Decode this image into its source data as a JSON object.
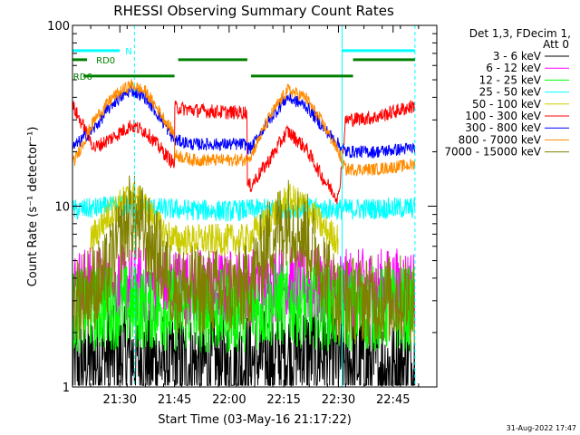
{
  "chart_data": {
    "type": "line",
    "title": "RHESSI Observing Summary Count Rates",
    "ylabel": "Count Rate (s⁻¹ detector⁻¹)",
    "xlabel": "Start Time (03-May-16 21:17:22)",
    "yscale": "log",
    "ylim": [
      1,
      100
    ],
    "xlim_minutes": [
      77,
      177
    ],
    "x_ticks": [
      {
        "m": 90,
        "label": "21:30"
      },
      {
        "m": 105,
        "label": "21:45"
      },
      {
        "m": 120,
        "label": "22:00"
      },
      {
        "m": 135,
        "label": "22:15"
      },
      {
        "m": 150,
        "label": "22:30"
      },
      {
        "m": 165,
        "label": "22:45"
      }
    ],
    "y_ticks": [
      {
        "v": 1,
        "label": "1"
      },
      {
        "v": 10,
        "label": "10"
      },
      {
        "v": 100,
        "label": "100"
      }
    ],
    "legend_header": [
      "Det 1,3, FDecim 1,",
      "Att 0"
    ],
    "legend_position": "right",
    "series": [
      {
        "name": "3 - 6 keV",
        "color": "#000000",
        "y": [
          [
            77,
            1.3
          ],
          [
            88,
            1.5
          ],
          [
            100,
            1.4
          ],
          [
            120,
            1.3
          ],
          [
            140,
            1.6
          ],
          [
            160,
            1.3
          ],
          [
            171,
            1.3
          ]
        ]
      },
      {
        "name": "6 - 12 keV",
        "color": "#ff00ff",
        "y": [
          [
            77,
            3.6
          ],
          [
            90,
            3.7
          ],
          [
            105,
            3.6
          ],
          [
            120,
            3.5
          ],
          [
            135,
            3.7
          ],
          [
            150,
            3.5
          ],
          [
            171,
            3.6
          ]
        ]
      },
      {
        "name": "12 - 25 keV",
        "color": "#00ff00",
        "y": [
          [
            77,
            2.6
          ],
          [
            90,
            2.8
          ],
          [
            105,
            2.7
          ],
          [
            120,
            2.6
          ],
          [
            135,
            2.9
          ],
          [
            150,
            2.7
          ],
          [
            171,
            2.7
          ]
        ]
      },
      {
        "name": "25 - 50 keV",
        "color": "#00ffff",
        "y": [
          [
            77,
            9.5
          ],
          [
            90,
            10
          ],
          [
            105,
            9.6
          ],
          [
            120,
            9.4
          ],
          [
            135,
            9.8
          ],
          [
            150,
            9.6
          ],
          [
            171,
            9.8
          ]
        ]
      },
      {
        "name": "50 - 100 keV",
        "color": "#cccc00",
        "y": [
          [
            82,
            6.5
          ],
          [
            87,
            9
          ],
          [
            93,
            11.5
          ],
          [
            97,
            10
          ],
          [
            101,
            7.5
          ],
          [
            105,
            6.5
          ],
          [
            125,
            6.5
          ],
          [
            131,
            8.5
          ],
          [
            136,
            11
          ],
          [
            141,
            10
          ],
          [
            146,
            7.5
          ],
          [
            150,
            6.5
          ]
        ]
      },
      {
        "name": "100 - 300 keV",
        "color": "#ff0000",
        "y": [
          [
            77,
            36
          ],
          [
            83,
            21
          ],
          [
            88,
            24
          ],
          [
            93,
            28
          ],
          [
            97,
            26
          ],
          [
            101,
            21
          ],
          [
            105,
            17
          ],
          [
            106,
            35
          ],
          [
            110,
            34
          ],
          [
            120,
            33
          ],
          [
            125,
            33
          ],
          [
            126,
            13
          ],
          [
            131,
            18
          ],
          [
            136,
            26
          ],
          [
            141,
            21
          ],
          [
            146,
            14
          ],
          [
            150,
            11
          ],
          [
            152,
            30
          ],
          [
            160,
            31
          ],
          [
            171,
            36
          ]
        ]
      },
      {
        "name": "300 - 800 keV",
        "color": "#0000ff",
        "y": [
          [
            77,
            21
          ],
          [
            83,
            27
          ],
          [
            88,
            37
          ],
          [
            93,
            44
          ],
          [
            97,
            40
          ],
          [
            101,
            31
          ],
          [
            105,
            23
          ],
          [
            106,
            23
          ],
          [
            110,
            22
          ],
          [
            125,
            22
          ],
          [
            126,
            21
          ],
          [
            131,
            30
          ],
          [
            136,
            40
          ],
          [
            141,
            36
          ],
          [
            146,
            27
          ],
          [
            150,
            22
          ],
          [
            152,
            20
          ],
          [
            160,
            20
          ],
          [
            171,
            21
          ]
        ]
      },
      {
        "name": "800 - 7000 keV",
        "color": "#ff8c00",
        "y": [
          [
            77,
            17
          ],
          [
            83,
            30
          ],
          [
            88,
            40
          ],
          [
            93,
            47
          ],
          [
            97,
            43
          ],
          [
            101,
            33
          ],
          [
            105,
            25
          ],
          [
            106,
            19
          ],
          [
            110,
            18
          ],
          [
            125,
            18
          ],
          [
            126,
            19
          ],
          [
            131,
            31
          ],
          [
            136,
            44
          ],
          [
            141,
            40
          ],
          [
            146,
            28
          ],
          [
            150,
            20
          ],
          [
            152,
            16
          ],
          [
            160,
            16
          ],
          [
            171,
            17
          ]
        ]
      },
      {
        "name": "7000 - 15000 keV",
        "color": "#808000",
        "y": [
          [
            77,
            3.0
          ],
          [
            86,
            4.0
          ],
          [
            93,
            9.0
          ],
          [
            97,
            7.0
          ],
          [
            101,
            5.0
          ],
          [
            105,
            3.5
          ],
          [
            120,
            3.3
          ],
          [
            125,
            3.5
          ],
          [
            131,
            6.5
          ],
          [
            136,
            8.5
          ],
          [
            141,
            7.0
          ],
          [
            146,
            4.5
          ],
          [
            150,
            3.0
          ],
          [
            171,
            3.1
          ]
        ]
      }
    ],
    "flags": [
      {
        "label": "N",
        "color": "#00ffff",
        "level": 0.075,
        "segments": [
          [
            77,
            90
          ],
          [
            151,
            171
          ]
        ]
      },
      {
        "label": "RD0",
        "color": "#008000",
        "level": 0.1,
        "segments": [
          [
            77,
            81
          ],
          [
            106,
            125
          ],
          [
            154,
            171
          ]
        ]
      },
      {
        "label": "RD6",
        "color": "#008000",
        "level": 0.145,
        "segments": [
          [
            80,
            105
          ],
          [
            126,
            154
          ]
        ]
      }
    ],
    "vlines_dashed": [
      {
        "m": 94,
        "color": "#00ffff"
      },
      {
        "m": 171,
        "color": "#00ffff"
      }
    ],
    "vlines_solid": [
      {
        "m": 77,
        "color": "#00ffff"
      },
      {
        "m": 151,
        "color": "#00ffff"
      }
    ]
  },
  "footer": {
    "date": "31-Aug-2022 17:47"
  }
}
